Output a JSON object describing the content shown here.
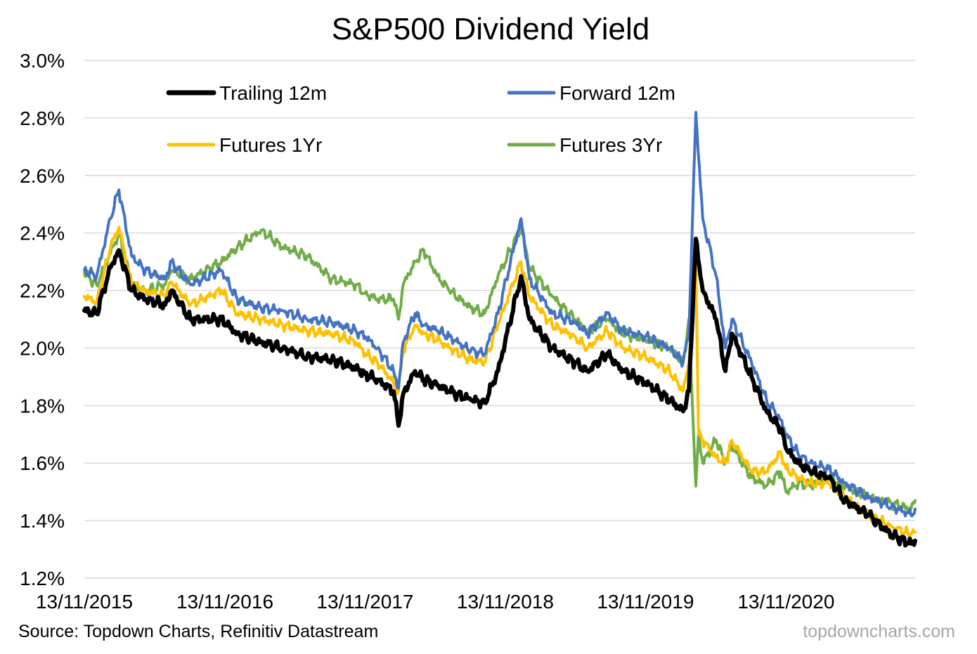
{
  "chart_data": {
    "type": "line",
    "title": "S&P500 Dividend Yield",
    "xlabel": "",
    "ylabel": "",
    "x_tick_labels": [
      "13/11/2015",
      "13/11/2016",
      "13/11/2017",
      "13/11/2018",
      "13/11/2019",
      "13/11/2020"
    ],
    "y_tick_labels": [
      "1.2%",
      "1.4%",
      "1.6%",
      "1.8%",
      "2.0%",
      "2.2%",
      "2.4%",
      "2.6%",
      "2.8%",
      "3.0%"
    ],
    "ylim": [
      1.2,
      3.0
    ],
    "xlim": [
      "2015-11-13",
      "2021-10-15"
    ],
    "grid": true,
    "legend_position": "top",
    "series": [
      {
        "name": "Trailing 12m",
        "color": "#000000",
        "points": [
          [
            "2015-11-13",
            2.13
          ],
          [
            "2015-12-15",
            2.12
          ],
          [
            "2016-01-20",
            2.28
          ],
          [
            "2016-02-11",
            2.34
          ],
          [
            "2016-03-15",
            2.2
          ],
          [
            "2016-04-20",
            2.17
          ],
          [
            "2016-06-10",
            2.15
          ],
          [
            "2016-06-27",
            2.2
          ],
          [
            "2016-08-15",
            2.1
          ],
          [
            "2016-11-04",
            2.1
          ],
          [
            "2016-12-15",
            2.05
          ],
          [
            "2017-02-15",
            2.02
          ],
          [
            "2017-04-13",
            2.0
          ],
          [
            "2017-06-15",
            1.97
          ],
          [
            "2017-08-18",
            1.96
          ],
          [
            "2017-10-20",
            1.93
          ],
          [
            "2017-11-13",
            1.91
          ],
          [
            "2017-12-15",
            1.89
          ],
          [
            "2018-01-26",
            1.85
          ],
          [
            "2018-02-08",
            1.73
          ],
          [
            "2018-02-20",
            1.84
          ],
          [
            "2018-03-23",
            1.92
          ],
          [
            "2018-04-15",
            1.89
          ],
          [
            "2018-05-20",
            1.87
          ],
          [
            "2018-06-20",
            1.85
          ],
          [
            "2018-08-15",
            1.82
          ],
          [
            "2018-09-20",
            1.81
          ],
          [
            "2018-10-25",
            1.92
          ],
          [
            "2018-12-24",
            2.25
          ],
          [
            "2019-01-15",
            2.1
          ],
          [
            "2019-03-15",
            2.0
          ],
          [
            "2019-05-13",
            1.95
          ],
          [
            "2019-06-15",
            1.92
          ],
          [
            "2019-08-05",
            1.98
          ],
          [
            "2019-09-15",
            1.92
          ],
          [
            "2019-11-13",
            1.88
          ],
          [
            "2020-01-15",
            1.82
          ],
          [
            "2020-02-19",
            1.78
          ],
          [
            "2020-03-05",
            1.85
          ],
          [
            "2020-03-23",
            2.38
          ],
          [
            "2020-04-10",
            2.2
          ],
          [
            "2020-05-15",
            2.1
          ],
          [
            "2020-06-08",
            1.92
          ],
          [
            "2020-06-25",
            2.05
          ],
          [
            "2020-08-15",
            1.9
          ],
          [
            "2020-09-23",
            1.78
          ],
          [
            "2020-10-30",
            1.72
          ],
          [
            "2020-11-13",
            1.65
          ],
          [
            "2020-12-15",
            1.6
          ],
          [
            "2021-01-15",
            1.57
          ],
          [
            "2021-03-04",
            1.55
          ],
          [
            "2021-04-15",
            1.47
          ],
          [
            "2021-06-15",
            1.42
          ],
          [
            "2021-08-15",
            1.35
          ],
          [
            "2021-10-04",
            1.32
          ],
          [
            "2021-10-15",
            1.33
          ]
        ]
      },
      {
        "name": "Forward 12m",
        "color": "#4472c4",
        "points": [
          [
            "2015-11-13",
            2.27
          ],
          [
            "2015-12-15",
            2.25
          ],
          [
            "2016-01-20",
            2.45
          ],
          [
            "2016-02-11",
            2.55
          ],
          [
            "2016-03-15",
            2.32
          ],
          [
            "2016-04-20",
            2.27
          ],
          [
            "2016-06-10",
            2.24
          ],
          [
            "2016-06-27",
            2.3
          ],
          [
            "2016-08-15",
            2.22
          ],
          [
            "2016-11-04",
            2.27
          ],
          [
            "2016-12-15",
            2.17
          ],
          [
            "2017-02-15",
            2.14
          ],
          [
            "2017-04-13",
            2.13
          ],
          [
            "2017-06-15",
            2.1
          ],
          [
            "2017-08-18",
            2.09
          ],
          [
            "2017-10-20",
            2.06
          ],
          [
            "2017-11-13",
            2.04
          ],
          [
            "2017-12-15",
            2.0
          ],
          [
            "2018-01-26",
            1.92
          ],
          [
            "2018-02-08",
            1.86
          ],
          [
            "2018-02-20",
            2.02
          ],
          [
            "2018-03-23",
            2.12
          ],
          [
            "2018-04-15",
            2.08
          ],
          [
            "2018-05-20",
            2.06
          ],
          [
            "2018-06-20",
            2.04
          ],
          [
            "2018-08-15",
            1.99
          ],
          [
            "2018-09-20",
            1.98
          ],
          [
            "2018-10-25",
            2.12
          ],
          [
            "2018-12-24",
            2.45
          ],
          [
            "2019-01-15",
            2.24
          ],
          [
            "2019-03-15",
            2.12
          ],
          [
            "2019-05-13",
            2.09
          ],
          [
            "2019-06-15",
            2.05
          ],
          [
            "2019-08-05",
            2.12
          ],
          [
            "2019-09-15",
            2.06
          ],
          [
            "2019-11-13",
            2.04
          ],
          [
            "2020-01-15",
            2.0
          ],
          [
            "2020-02-19",
            1.95
          ],
          [
            "2020-03-05",
            2.05
          ],
          [
            "2020-03-23",
            2.82
          ],
          [
            "2020-04-10",
            2.45
          ],
          [
            "2020-05-15",
            2.25
          ],
          [
            "2020-06-08",
            2.0
          ],
          [
            "2020-06-25",
            2.1
          ],
          [
            "2020-08-15",
            1.95
          ],
          [
            "2020-09-23",
            1.82
          ],
          [
            "2020-10-30",
            1.75
          ],
          [
            "2020-11-13",
            1.7
          ],
          [
            "2020-12-15",
            1.63
          ],
          [
            "2021-01-15",
            1.6
          ],
          [
            "2021-03-04",
            1.58
          ],
          [
            "2021-04-15",
            1.53
          ],
          [
            "2021-06-15",
            1.48
          ],
          [
            "2021-08-15",
            1.45
          ],
          [
            "2021-10-04",
            1.42
          ],
          [
            "2021-10-15",
            1.44
          ]
        ]
      },
      {
        "name": "Futures 1Yr",
        "color": "#ffc000",
        "points": [
          [
            "2015-11-13",
            2.18
          ],
          [
            "2015-12-15",
            2.16
          ],
          [
            "2016-01-20",
            2.35
          ],
          [
            "2016-02-11",
            2.42
          ],
          [
            "2016-03-15",
            2.22
          ],
          [
            "2016-04-20",
            2.2
          ],
          [
            "2016-06-10",
            2.18
          ],
          [
            "2016-06-27",
            2.23
          ],
          [
            "2016-08-15",
            2.15
          ],
          [
            "2016-11-04",
            2.2
          ],
          [
            "2016-12-15",
            2.12
          ],
          [
            "2017-02-15",
            2.1
          ],
          [
            "2017-04-13",
            2.08
          ],
          [
            "2017-06-15",
            2.06
          ],
          [
            "2017-08-18",
            2.05
          ],
          [
            "2017-10-20",
            2.02
          ],
          [
            "2017-11-13",
            1.98
          ],
          [
            "2017-12-15",
            1.95
          ],
          [
            "2018-01-26",
            1.88
          ],
          [
            "2018-02-08",
            1.85
          ],
          [
            "2018-02-20",
            1.99
          ],
          [
            "2018-03-23",
            2.08
          ],
          [
            "2018-04-15",
            2.05
          ],
          [
            "2018-05-20",
            2.03
          ],
          [
            "2018-06-20",
            2.0
          ],
          [
            "2018-08-15",
            1.96
          ],
          [
            "2018-09-20",
            1.95
          ],
          [
            "2018-10-25",
            2.08
          ],
          [
            "2018-12-24",
            2.3
          ],
          [
            "2019-01-15",
            2.18
          ],
          [
            "2019-03-15",
            2.08
          ],
          [
            "2019-05-13",
            2.04
          ],
          [
            "2019-06-15",
            2.0
          ],
          [
            "2019-08-05",
            2.06
          ],
          [
            "2019-09-15",
            2.0
          ],
          [
            "2019-11-13",
            1.97
          ],
          [
            "2020-01-15",
            1.92
          ],
          [
            "2020-02-19",
            1.85
          ],
          [
            "2020-03-05",
            1.95
          ],
          [
            "2020-03-23",
            2.3
          ],
          [
            "2020-03-30",
            1.7
          ],
          [
            "2020-04-10",
            1.68
          ],
          [
            "2020-05-15",
            1.62
          ],
          [
            "2020-06-08",
            1.6
          ],
          [
            "2020-06-25",
            1.68
          ],
          [
            "2020-08-15",
            1.57
          ],
          [
            "2020-09-23",
            1.57
          ],
          [
            "2020-10-30",
            1.64
          ],
          [
            "2020-11-13",
            1.58
          ],
          [
            "2020-12-15",
            1.55
          ],
          [
            "2021-01-15",
            1.53
          ],
          [
            "2021-03-04",
            1.53
          ],
          [
            "2021-04-15",
            1.48
          ],
          [
            "2021-06-15",
            1.42
          ],
          [
            "2021-08-15",
            1.38
          ],
          [
            "2021-10-04",
            1.35
          ],
          [
            "2021-10-15",
            1.36
          ]
        ]
      },
      {
        "name": "Futures 3Yr",
        "color": "#70ad47",
        "points": [
          [
            "2015-11-13",
            2.26
          ],
          [
            "2015-12-15",
            2.22
          ],
          [
            "2016-01-20",
            2.33
          ],
          [
            "2016-02-11",
            2.4
          ],
          [
            "2016-03-15",
            2.22
          ],
          [
            "2016-04-20",
            2.2
          ],
          [
            "2016-06-10",
            2.22
          ],
          [
            "2016-06-27",
            2.27
          ],
          [
            "2016-08-15",
            2.24
          ],
          [
            "2016-11-04",
            2.3
          ],
          [
            "2016-12-15",
            2.35
          ],
          [
            "2017-02-15",
            2.41
          ],
          [
            "2017-04-13",
            2.35
          ],
          [
            "2017-06-15",
            2.32
          ],
          [
            "2017-08-18",
            2.24
          ],
          [
            "2017-10-20",
            2.22
          ],
          [
            "2017-11-13",
            2.19
          ],
          [
            "2017-12-15",
            2.17
          ],
          [
            "2018-01-26",
            2.17
          ],
          [
            "2018-02-08",
            2.1
          ],
          [
            "2018-02-20",
            2.22
          ],
          [
            "2018-03-23",
            2.3
          ],
          [
            "2018-04-15",
            2.34
          ],
          [
            "2018-05-20",
            2.25
          ],
          [
            "2018-06-20",
            2.2
          ],
          [
            "2018-08-15",
            2.14
          ],
          [
            "2018-09-20",
            2.12
          ],
          [
            "2018-10-25",
            2.25
          ],
          [
            "2018-12-24",
            2.42
          ],
          [
            "2019-01-15",
            2.28
          ],
          [
            "2019-03-15",
            2.18
          ],
          [
            "2019-05-13",
            2.1
          ],
          [
            "2019-06-15",
            2.06
          ],
          [
            "2019-08-05",
            2.1
          ],
          [
            "2019-09-15",
            2.05
          ],
          [
            "2019-11-13",
            2.03
          ],
          [
            "2020-01-15",
            2.0
          ],
          [
            "2020-02-19",
            1.95
          ],
          [
            "2020-03-05",
            2.1
          ],
          [
            "2020-03-23",
            1.52
          ],
          [
            "2020-03-30",
            1.7
          ],
          [
            "2020-04-10",
            1.6
          ],
          [
            "2020-05-15",
            1.68
          ],
          [
            "2020-06-08",
            1.6
          ],
          [
            "2020-06-25",
            1.66
          ],
          [
            "2020-08-15",
            1.55
          ],
          [
            "2020-09-23",
            1.52
          ],
          [
            "2020-10-30",
            1.57
          ],
          [
            "2020-11-13",
            1.5
          ],
          [
            "2020-12-15",
            1.53
          ],
          [
            "2021-01-15",
            1.52
          ],
          [
            "2021-03-04",
            1.55
          ],
          [
            "2021-04-15",
            1.52
          ],
          [
            "2021-06-15",
            1.48
          ],
          [
            "2021-08-15",
            1.46
          ],
          [
            "2021-10-04",
            1.44
          ],
          [
            "2021-10-15",
            1.47
          ]
        ]
      }
    ]
  },
  "footer": {
    "source": "Source: Topdown Charts, Refinitiv Datastream",
    "brand": "topdowncharts.com"
  }
}
